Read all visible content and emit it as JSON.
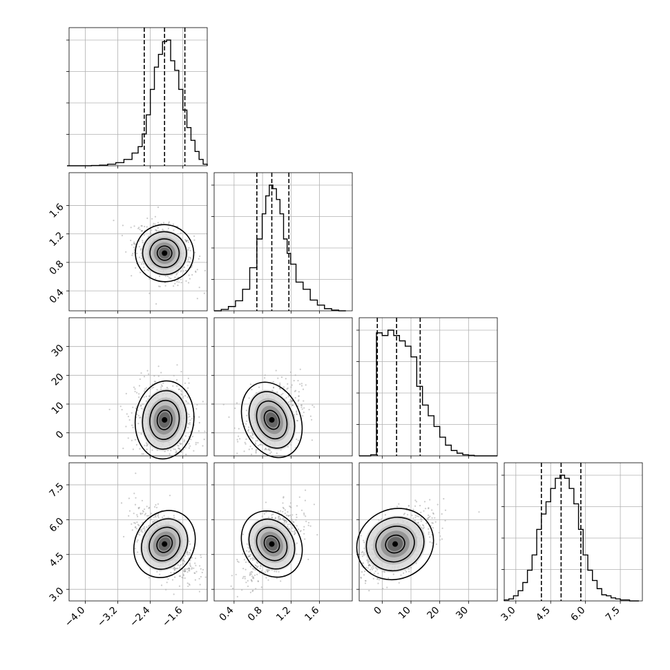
{
  "chart_data": {
    "type": "corner",
    "title": "",
    "grid": true,
    "parameters": [
      {
        "range": [
          -4.4,
          -1.0
        ],
        "ticks": [
          -4.0,
          -3.2,
          -2.4,
          -1.6
        ],
        "tick_labels": [
          "−4.0",
          "−3.2",
          "−2.4",
          "−1.6"
        ],
        "quantiles": [
          -2.55,
          -2.05,
          -1.55
        ],
        "hist_centers": [
          -4.35,
          -4.15,
          -3.95,
          -3.75,
          -3.55,
          -3.35,
          -3.15,
          -2.95,
          -2.75,
          -2.65,
          -2.55,
          -2.45,
          -2.35,
          -2.25,
          -2.15,
          -2.05,
          -1.95,
          -1.85,
          -1.75,
          -1.65,
          -1.55,
          -1.45,
          -1.35,
          -1.25,
          -1.15,
          -1.05
        ],
        "hist_counts": [
          0,
          0,
          0,
          1,
          2,
          5,
          10,
          20,
          40,
          60,
          100,
          160,
          240,
          310,
          350,
          390,
          395,
          330,
          300,
          240,
          175,
          120,
          80,
          45,
          20,
          5
        ]
      },
      {
        "range": [
          0.12,
          2.06
        ],
        "ticks": [
          0.4,
          0.8,
          1.2,
          1.6
        ],
        "tick_labels": [
          "0.4",
          "0.8",
          "1.2",
          "1.6"
        ],
        "quantiles": [
          0.72,
          0.93,
          1.17
        ],
        "hist_centers": [
          0.17,
          0.27,
          0.37,
          0.47,
          0.57,
          0.67,
          0.77,
          0.82,
          0.87,
          0.92,
          0.97,
          1.02,
          1.07,
          1.12,
          1.17,
          1.22,
          1.32,
          1.42,
          1.52,
          1.62,
          1.72,
          1.82,
          1.92
        ],
        "hist_counts": [
          0,
          2,
          6,
          14,
          30,
          60,
          100,
          135,
          160,
          175,
          170,
          155,
          135,
          100,
          80,
          65,
          40,
          30,
          15,
          8,
          3,
          1,
          0
        ]
      },
      {
        "range": [
          -8.0,
          40.0
        ],
        "ticks": [
          0,
          10,
          20,
          30
        ],
        "tick_labels": [
          "0",
          "10",
          "20",
          "30"
        ],
        "quantiles": [
          -1.7,
          5.0,
          13.2
        ],
        "hist_centers": [
          -7,
          -5,
          -3,
          -1,
          1,
          3,
          5,
          7,
          9,
          11,
          13,
          15,
          17,
          19,
          21,
          23,
          25,
          27,
          29,
          31,
          33,
          35,
          37,
          39
        ],
        "hist_counts": [
          0,
          0,
          2,
          230,
          225,
          235,
          225,
          215,
          205,
          185,
          130,
          95,
          75,
          55,
          35,
          20,
          10,
          5,
          2,
          1,
          0,
          0,
          0,
          0
        ]
      },
      {
        "range": [
          2.5,
          8.45
        ],
        "ticks": [
          3.0,
          4.5,
          6.0,
          7.5
        ],
        "tick_labels": [
          "3.0",
          "4.5",
          "6.0",
          "7.5"
        ],
        "quantiles": [
          4.1,
          4.95,
          5.8
        ],
        "hist_centers": [
          2.6,
          2.8,
          3.0,
          3.2,
          3.4,
          3.6,
          3.8,
          4.0,
          4.2,
          4.4,
          4.6,
          4.8,
          5.0,
          5.2,
          5.4,
          5.6,
          5.8,
          6.0,
          6.2,
          6.4,
          6.6,
          6.8,
          7.0,
          7.2,
          7.4,
          7.6,
          7.8,
          8.0,
          8.2
        ],
        "hist_counts": [
          1,
          2,
          5,
          10,
          18,
          30,
          45,
          70,
          85,
          97,
          110,
          120,
          123,
          120,
          110,
          95,
          70,
          45,
          30,
          20,
          12,
          6,
          5,
          3,
          2,
          1,
          1,
          0,
          0
        ]
      }
    ],
    "pairs": [
      {
        "x": 0,
        "y": 1,
        "mean": [
          -2.05,
          0.93
        ],
        "sd": [
          0.36,
          0.2
        ],
        "rho": -0.35
      },
      {
        "x": 0,
        "y": 2,
        "mean": [
          -2.05,
          4.5
        ],
        "sd": [
          0.36,
          6.8
        ],
        "rho": -0.1
      },
      {
        "x": 1,
        "y": 2,
        "mean": [
          0.93,
          4.5
        ],
        "sd": [
          0.2,
          6.8
        ],
        "rho": 0.35
      },
      {
        "x": 0,
        "y": 3,
        "mean": [
          -2.05,
          4.95
        ],
        "sd": [
          0.36,
          0.75
        ],
        "rho": -0.55
      },
      {
        "x": 1,
        "y": 3,
        "mean": [
          0.93,
          4.95
        ],
        "sd": [
          0.2,
          0.75
        ],
        "rho": 0.6
      },
      {
        "x": 2,
        "y": 3,
        "mean": [
          4.5,
          4.95
        ],
        "sd": [
          6.8,
          0.75
        ],
        "rho": 0.6
      }
    ]
  }
}
